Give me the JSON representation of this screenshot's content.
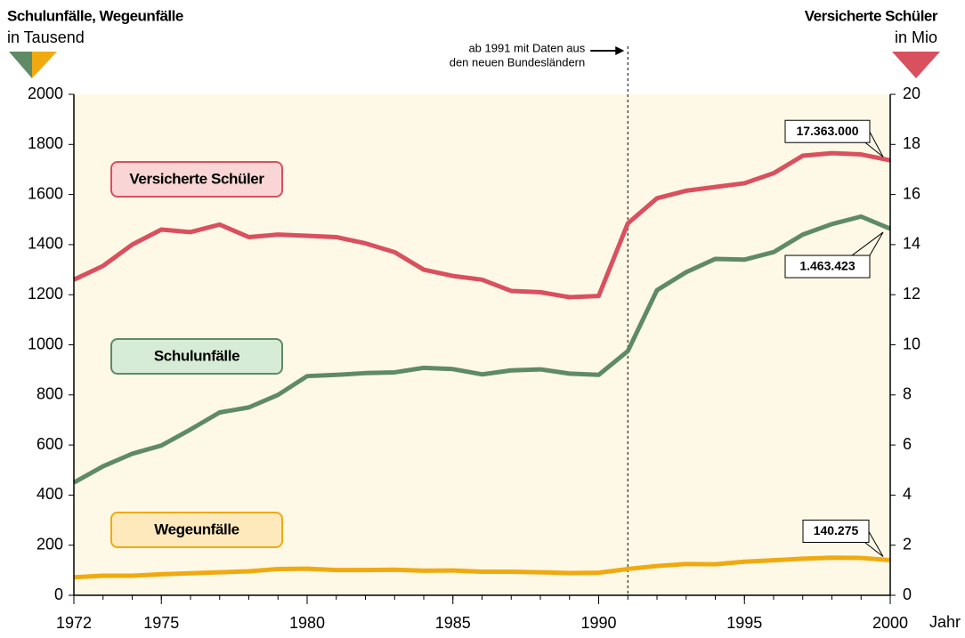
{
  "chart_data": {
    "type": "line",
    "title_left": "Schulunfälle, Wegeunfälle",
    "subtitle_left": "in Tausend",
    "title_right": "Versicherte Schüler",
    "subtitle_right": "in Mio",
    "x_label": "Jahr",
    "annotation": {
      "x": 1991,
      "lines": [
        "ab 1991 mit Daten aus",
        "den neuen Bundesländern"
      ]
    },
    "x": [
      1972,
      1973,
      1974,
      1975,
      1976,
      1977,
      1978,
      1979,
      1980,
      1981,
      1982,
      1983,
      1984,
      1985,
      1986,
      1987,
      1988,
      1989,
      1990,
      1991,
      1992,
      1993,
      1994,
      1995,
      1996,
      1997,
      1998,
      1999,
      2000
    ],
    "xlim": [
      1972,
      2000
    ],
    "xticks": [
      1972,
      1975,
      1980,
      1985,
      1990,
      1995,
      2000
    ],
    "ylim": [
      0,
      2000
    ],
    "yticks": [
      0,
      200,
      400,
      600,
      800,
      1000,
      1200,
      1400,
      1600,
      1800,
      2000
    ],
    "y2lim": [
      0,
      20
    ],
    "y2ticks": [
      0,
      2,
      4,
      6,
      8,
      10,
      12,
      14,
      16,
      18,
      20
    ],
    "series": [
      {
        "name": "Versicherte Schüler",
        "color": "#d9505e",
        "axis": "y2",
        "values": [
          12.6,
          13.15,
          14.0,
          14.6,
          14.5,
          14.8,
          14.3,
          14.4,
          14.35,
          14.3,
          14.05,
          13.7,
          13.0,
          12.75,
          12.6,
          12.15,
          12.1,
          11.9,
          11.95,
          14.85,
          15.85,
          16.15,
          16.3,
          16.45,
          16.85,
          17.55,
          17.65,
          17.6,
          17.363
        ],
        "value_labels": [
          null,
          null,
          null,
          null,
          null,
          null,
          null,
          null,
          null,
          null,
          null,
          null,
          null,
          null,
          null,
          null,
          null,
          null,
          null,
          null,
          null,
          null,
          null,
          null,
          null,
          null,
          null,
          null,
          "17.363.000"
        ]
      },
      {
        "name": "Schulunfälle",
        "color": "#5f8a66",
        "axis": "y",
        "values": [
          450,
          515,
          565,
          598,
          662,
          730,
          750,
          800,
          875,
          880,
          887,
          890,
          908,
          903,
          882,
          898,
          902,
          885,
          880,
          975,
          1218,
          1290,
          1343,
          1340,
          1370,
          1440,
          1482,
          1512,
          1463.423
        ],
        "value_labels": [
          null,
          null,
          null,
          null,
          null,
          null,
          null,
          null,
          null,
          null,
          null,
          null,
          null,
          null,
          null,
          null,
          null,
          null,
          null,
          null,
          null,
          null,
          null,
          null,
          null,
          null,
          null,
          null,
          "1.463.423"
        ]
      },
      {
        "name": "Wegeunfälle",
        "color": "#f0aa10",
        "axis": "y",
        "values": [
          72,
          78,
          78,
          84,
          88,
          92,
          96,
          105,
          106,
          101,
          101,
          102,
          98,
          99,
          94,
          94,
          92,
          89,
          90,
          105,
          117,
          125,
          124,
          134,
          140,
          146,
          150,
          149,
          140.275
        ],
        "value_labels": [
          null,
          null,
          null,
          null,
          null,
          null,
          null,
          null,
          null,
          null,
          null,
          null,
          null,
          null,
          null,
          null,
          null,
          null,
          null,
          null,
          null,
          null,
          null,
          null,
          null,
          null,
          null,
          null,
          "140.275"
        ]
      }
    ]
  }
}
